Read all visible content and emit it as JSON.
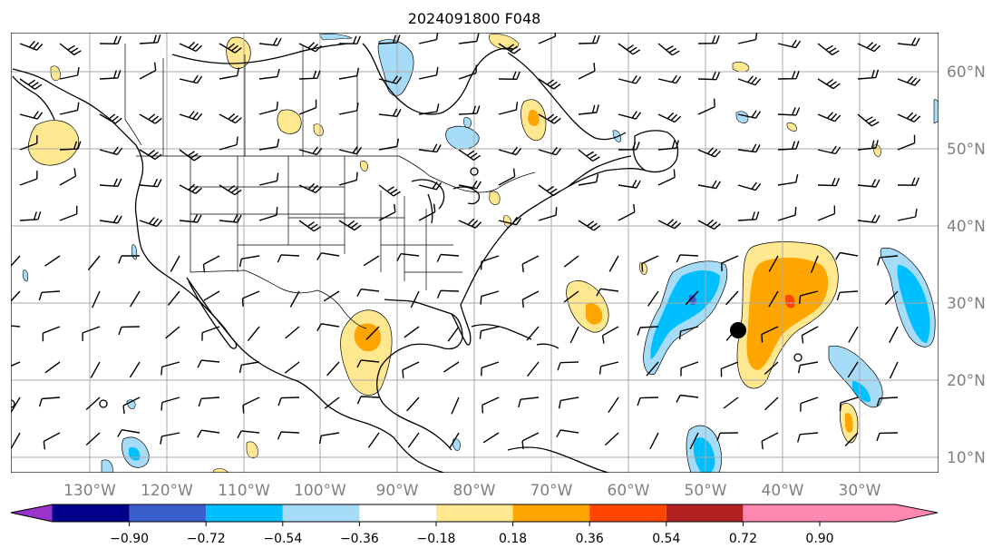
{
  "title": "2024091800 F048",
  "map": {
    "lon_labels": [
      "130°W",
      "120°W",
      "110°W",
      "100°W",
      "90°W",
      "80°W",
      "70°W",
      "60°W",
      "50°W",
      "40°W",
      "30°W"
    ],
    "lat_labels": [
      "60°N",
      "50°N",
      "40°N",
      "30°N",
      "20°N",
      "10°N"
    ]
  },
  "colorbar": {
    "ticks": [
      "−0.90",
      "−0.72",
      "−0.54",
      "−0.36",
      "−0.18",
      "0.18",
      "0.36",
      "0.54",
      "0.72",
      "0.90"
    ],
    "colors": [
      "#9933cc",
      "#00008b",
      "#3a5fcd",
      "#00bfff",
      "#a6dcf7",
      "#ffffff",
      "#ffe88f",
      "#ffa500",
      "#ff4500",
      "#b22222",
      "#ff88b0"
    ]
  },
  "marker": {
    "type": "filled-circle",
    "color": "#000000"
  }
}
